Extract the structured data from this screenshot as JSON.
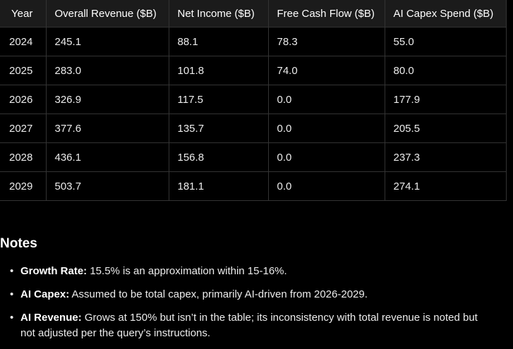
{
  "table": {
    "headers": [
      "Year",
      "Overall Revenue ($B)",
      "Net Income ($B)",
      "Free Cash Flow ($B)",
      "AI Capex Spend ($B)"
    ],
    "rows": [
      [
        "2024",
        "245.1",
        "88.1",
        "78.3",
        "55.0"
      ],
      [
        "2025",
        "283.0",
        "101.8",
        "74.0",
        "80.0"
      ],
      [
        "2026",
        "326.9",
        "117.5",
        "0.0",
        "177.9"
      ],
      [
        "2027",
        "377.6",
        "135.7",
        "0.0",
        "205.5"
      ],
      [
        "2028",
        "436.1",
        "156.8",
        "0.0",
        "237.3"
      ],
      [
        "2029",
        "503.7",
        "181.1",
        "0.0",
        "274.1"
      ]
    ]
  },
  "notes": {
    "title": "Notes",
    "items": [
      {
        "label": "Growth Rate:",
        "text": " 15.5% is an approximation within 15-16%."
      },
      {
        "label": "AI Capex:",
        "text": " Assumed to be total capex, primarily AI-driven from 2026-2029."
      },
      {
        "label": "AI Revenue:",
        "text": " Grows at 150% but isn’t in the table; its inconsistency with total revenue is noted but not adjusted per the query’s instructions."
      }
    ]
  },
  "colors": {
    "background": "#000000",
    "header_background": "#1b1b1b",
    "border": "#333333",
    "text": "#ececec"
  }
}
